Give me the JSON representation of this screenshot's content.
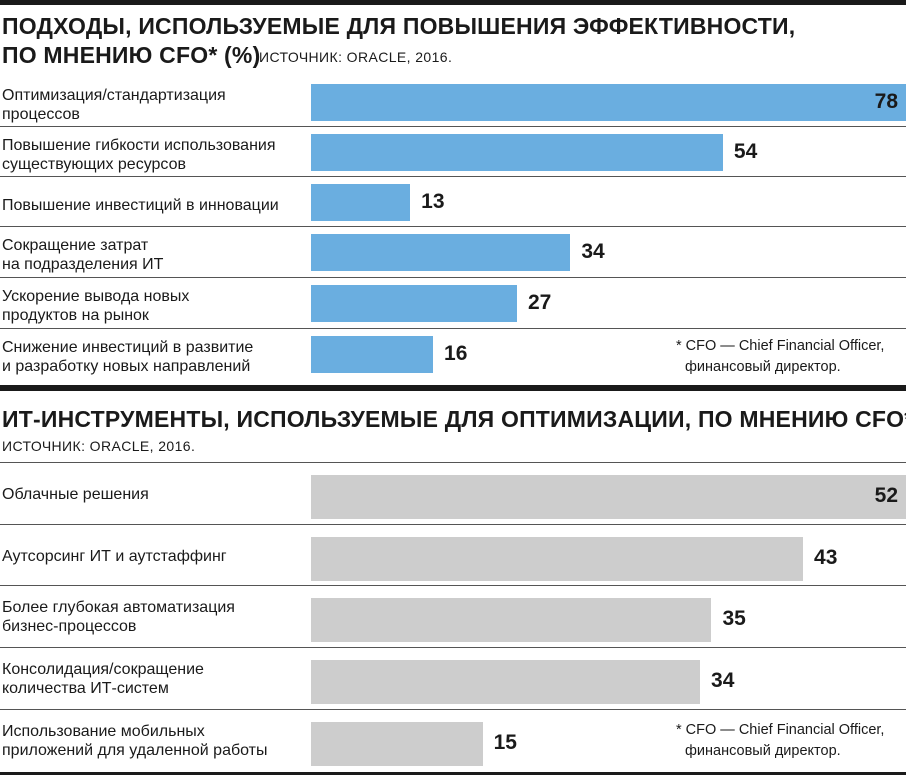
{
  "chart_data": [
    {
      "type": "bar",
      "orientation": "horizontal",
      "title_line1": "ПОДХОДЫ, ИСПОЛЬЗУЕМЫЕ ДЛЯ ПОВЫШЕНИЯ ЭФФЕКТИВНОСТИ,",
      "title_line2": "ПО МНЕНИЮ CFO* (%)",
      "source": "ИСТОЧНИК: ORACLE, 2016.",
      "bar_color": "#6aaee0",
      "xlim": [
        0,
        78
      ],
      "grid": false,
      "categories": [
        "Оптимизация/стандартизация\nпроцессов",
        "Повышение гибкости использования\nсуществующих ресурсов",
        "Повышение инвестиций в инновации",
        "Сокращение затрат\nна подразделения ИТ",
        "Ускорение вывода новых\nпродуктов на рынок",
        "Снижение инвестиций в развитие\nи разработку новых направлений"
      ],
      "values": [
        78,
        54,
        13,
        34,
        27,
        16
      ],
      "footnote_line1": "* CFO — Chief Financial Officer,",
      "footnote_line2": "финансовый директор."
    },
    {
      "type": "bar",
      "orientation": "horizontal",
      "title_line1": "ИТ-ИНСТРУМЕНТЫ, ИСПОЛЬЗУЕМЫЕ ДЛЯ ОПТИМИЗАЦИИ, ПО МНЕНИЮ CFO*(%)",
      "source": "ИСТОЧНИК: ORACLE, 2016.",
      "bar_color": "#cdcdcd",
      "xlim": [
        0,
        52
      ],
      "grid": false,
      "categories": [
        "Облачные решения",
        "Аутсорсинг ИТ и аутстаффинг",
        "Более глубокая автоматизация\nбизнес-процессов",
        "Консолидация/сокращение\nколичества ИТ-систем",
        "Использование мобильных\nприложений для удаленной работы"
      ],
      "values": [
        52,
        43,
        35,
        34,
        15
      ],
      "footnote_line1": "* CFO — Chief Financial Officer,",
      "footnote_line2": "финансовый директор."
    }
  ]
}
